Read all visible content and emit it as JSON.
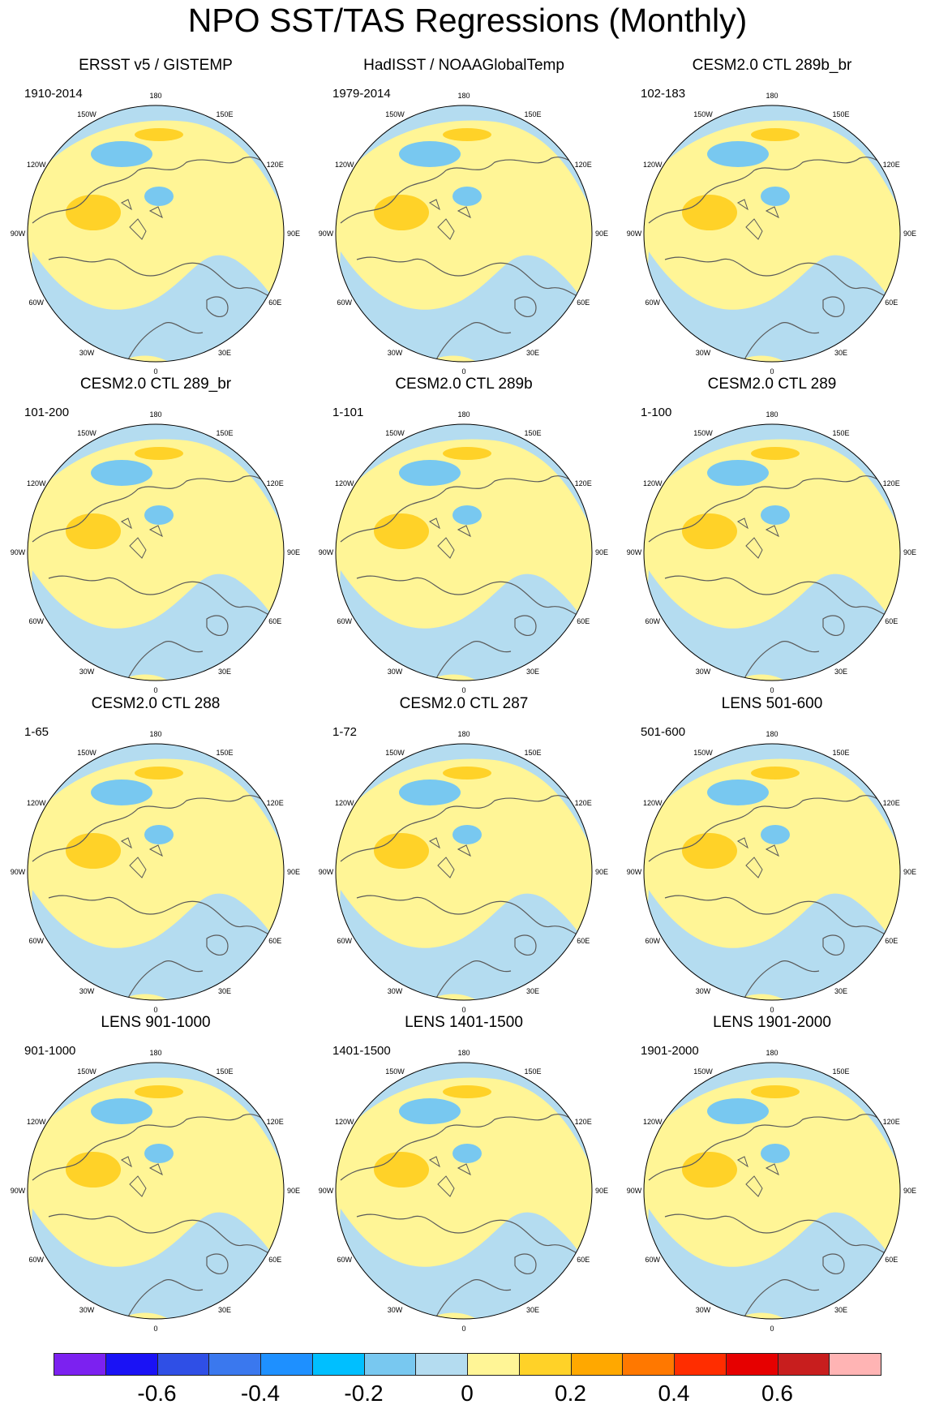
{
  "title": "NPO SST/TAS Regressions (Monthly)",
  "lon_labels": [
    "180",
    "150E",
    "120E",
    "90E",
    "60E",
    "30E",
    "0",
    "30W",
    "60W",
    "90W",
    "120W",
    "150W"
  ],
  "panels": [
    {
      "title": "ERSST v5 / GISTEMP",
      "period": "1910-2014"
    },
    {
      "title": "HadISST / NOAAGlobalTemp",
      "period": "1979-2014"
    },
    {
      "title": "CESM2.0 CTL 289b_br",
      "period": "102-183"
    },
    {
      "title": "CESM2.0 CTL 289_br",
      "period": "101-200"
    },
    {
      "title": "CESM2.0 CTL 289b",
      "period": "1-101"
    },
    {
      "title": "CESM2.0 CTL 289",
      "period": "1-100"
    },
    {
      "title": "CESM2.0 CTL 288",
      "period": "1-65"
    },
    {
      "title": "CESM2.0 CTL 287",
      "period": "1-72"
    },
    {
      "title": "LENS 501-600",
      "period": "501-600"
    },
    {
      "title": "LENS 901-1000",
      "period": "901-1000"
    },
    {
      "title": "LENS 1401-1500",
      "period": "1401-1500"
    },
    {
      "title": "LENS 1901-2000",
      "period": "1901-2000"
    }
  ],
  "colorbar": {
    "colors": [
      "#7c21f0",
      "#1a12f5",
      "#2f4fe6",
      "#3a78ee",
      "#1e90ff",
      "#00bfff",
      "#78c8f0",
      "#b4dcf0",
      "#fff596",
      "#ffd228",
      "#ffa800",
      "#ff7800",
      "#ff2d00",
      "#e60000",
      "#c81e1e",
      "#ffb4b4"
    ],
    "labels": [
      "-0.6",
      "-0.4",
      "-0.2",
      "0",
      "0.2",
      "0.4",
      "0.6"
    ]
  }
}
